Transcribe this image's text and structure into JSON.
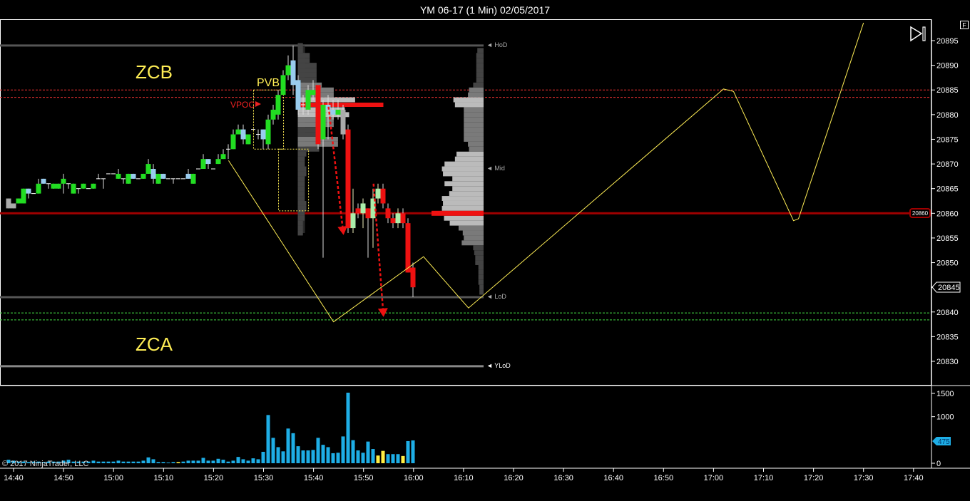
{
  "window": {
    "title": "YM 06-17 (1 Min)  02/05/2017",
    "f_button": "F",
    "copyright": "© 2017 NinjaTrader, LLC"
  },
  "colors": {
    "up": "#22dd22",
    "down": "#ee1111",
    "blue": "#99ccee",
    "gray": "#aaaaaa",
    "pale": "#aaeeaa",
    "doji": "#ffffff",
    "volume": "#1eaee6",
    "volume_alt": "#ffee44",
    "annotation": "#ffee55",
    "poc": "#ee1111",
    "level_red": "#a00000",
    "zone_red": "#ee3333",
    "zone_green": "#44dd44"
  },
  "labels": {
    "zcb": "ZCB",
    "zca": "ZCA",
    "pvb": "PVB",
    "vpoc": "VPOC",
    "hod": "◄ HoD",
    "mid": "◄ Mid",
    "lod": "◄ LoD",
    "ylod": "◄ YLoD"
  },
  "chart_data": {
    "type": "candlestick",
    "title": "YM 06-17 (1 Min)  02/05/2017",
    "first_bar_time": "14:39",
    "bar_interval": "1 Min",
    "price_axis": {
      "range": [
        20824,
        20899
      ],
      "ticks": [
        "20895",
        "20890",
        "20885",
        "20880",
        "20875",
        "20870",
        "20865",
        "20860",
        "20855",
        "20850",
        "20845",
        "20840",
        "20835",
        "20830"
      ]
    },
    "time_axis": {
      "ticks": [
        "14:40",
        "14:50",
        "15:00",
        "15:10",
        "15:20",
        "15:30",
        "15:40",
        "15:50",
        "16:00",
        "16:10",
        "16:20",
        "16:30",
        "16:40",
        "16:50",
        "17:00",
        "17:10",
        "17:20",
        "17:30",
        "17:40"
      ]
    },
    "volume_axis": {
      "range": [
        0,
        1500
      ],
      "ticks": [
        "1500",
        "1000",
        "0"
      ]
    },
    "last_price": "20845",
    "last_volume": "475",
    "level_tag": "20860",
    "candles": [
      [
        20861,
        20863,
        20861,
        20863,
        "gray"
      ],
      [
        20861,
        20862,
        20861,
        20862,
        "gray"
      ],
      [
        20862,
        20863,
        20862,
        20863,
        "up"
      ],
      [
        20862,
        20865,
        20862,
        20865,
        "up"
      ],
      [
        20865,
        20865,
        20863,
        20864,
        "blue"
      ],
      [
        20864,
        20864,
        20864,
        20864,
        "doji"
      ],
      [
        20864,
        20867,
        20864,
        20866,
        "up"
      ],
      [
        20867,
        20867,
        20866,
        20866,
        "blue"
      ],
      [
        20866,
        20866,
        20865,
        20866,
        "doji"
      ],
      [
        20865,
        20866,
        20865,
        20866,
        "up"
      ],
      [
        20865,
        20866,
        20865,
        20866,
        "up"
      ],
      [
        20866,
        20868,
        20864,
        20867,
        "up"
      ],
      [
        20866,
        20866,
        20865,
        20866,
        "doji"
      ],
      [
        20864,
        20866,
        20864,
        20866,
        "up"
      ],
      [
        20865,
        20865,
        20864,
        20865,
        "doji"
      ],
      [
        20865,
        20866,
        20865,
        20866,
        "up"
      ],
      [
        20865,
        20865,
        20865,
        20865,
        "doji"
      ],
      [
        20865,
        20866,
        20865,
        20866,
        "up"
      ],
      [
        20867,
        20868,
        20867,
        20867,
        "doji"
      ],
      [
        20867,
        20867,
        20865,
        20867,
        "doji"
      ],
      [
        20868,
        20868,
        20868,
        20868,
        "doji"
      ],
      [
        20868,
        20868,
        20868,
        20868,
        "doji"
      ],
      [
        20867,
        20869,
        20867,
        20868,
        "up"
      ],
      [
        20867,
        20867,
        20866,
        20867,
        "doji"
      ],
      [
        20866,
        20868,
        20866,
        20868,
        "up"
      ],
      [
        20868,
        20868,
        20867,
        20867,
        "blue"
      ],
      [
        20867,
        20867,
        20867,
        20867,
        "doji"
      ],
      [
        20867,
        20868,
        20867,
        20868,
        "up"
      ],
      [
        20868,
        20871,
        20868,
        20870,
        "up"
      ],
      [
        20869,
        20870,
        20866,
        20867,
        "blue"
      ],
      [
        20866,
        20868,
        20866,
        20868,
        "up"
      ],
      [
        20868,
        20868,
        20867,
        20867,
        "blue"
      ],
      [
        20867,
        20867,
        20867,
        20867,
        "doji"
      ],
      [
        20867,
        20867,
        20866,
        20867,
        "doji"
      ],
      [
        20867,
        20867,
        20867,
        20867,
        "doji"
      ],
      [
        20867,
        20867,
        20867,
        20867,
        "doji"
      ],
      [
        20868,
        20869,
        20867,
        20867,
        "blue"
      ],
      [
        20866,
        20868,
        20866,
        20868,
        "up"
      ],
      [
        20869,
        20869,
        20869,
        20869,
        "doji"
      ],
      [
        20869,
        20872,
        20869,
        20871,
        "up"
      ],
      [
        20871,
        20871,
        20869,
        20870,
        "blue"
      ],
      [
        20869,
        20869,
        20869,
        20869,
        "doji"
      ],
      [
        20870,
        20872,
        20870,
        20871,
        "up"
      ],
      [
        20871,
        20873,
        20871,
        20872,
        "up"
      ],
      [
        20873,
        20874,
        20871,
        20873,
        "doji"
      ],
      [
        20873,
        20877,
        20873,
        20876,
        "up"
      ],
      [
        20876,
        20878,
        20876,
        20877,
        "up"
      ],
      [
        20877,
        20878,
        20874,
        20875,
        "blue"
      ],
      [
        20874,
        20876,
        20874,
        20876,
        "up"
      ],
      [
        20877,
        20877,
        20877,
        20877,
        "doji"
      ],
      [
        20876,
        20877,
        20875,
        20876,
        "doji"
      ],
      [
        20877,
        20877,
        20873,
        20875,
        "blue"
      ],
      [
        20874,
        20880,
        20873,
        20879,
        "up"
      ],
      [
        20879,
        20882,
        20878,
        20881,
        "up"
      ],
      [
        20880,
        20885,
        20879,
        20884,
        "up"
      ],
      [
        20884,
        20889,
        20884,
        20888,
        "up"
      ],
      [
        20888,
        20892,
        20887,
        20890,
        "up"
      ],
      [
        20891,
        20894,
        20884,
        20886,
        "blue"
      ],
      [
        20887,
        20888,
        20880,
        20881,
        "blue"
      ],
      [
        20882,
        20884,
        20880,
        20882,
        "doji"
      ],
      [
        20881,
        20886,
        20880,
        20885,
        "up"
      ],
      [
        20884,
        20887,
        20883,
        20885,
        "up"
      ],
      [
        20886,
        20886,
        20873,
        20874,
        "down"
      ],
      [
        20875,
        20883,
        20851,
        20882,
        "up"
      ],
      [
        20882,
        20884,
        20875,
        20881,
        "blue"
      ],
      [
        20881,
        20883,
        20879,
        20880,
        "blue"
      ],
      [
        20880,
        20883,
        20879,
        20881,
        "up"
      ],
      [
        20881,
        20882,
        20875,
        20876,
        "gray"
      ],
      [
        20877,
        20878,
        20856,
        20857,
        "down"
      ],
      [
        20857,
        20865,
        20856,
        20860,
        "pale"
      ],
      [
        20861,
        20862,
        20859,
        20860,
        "down"
      ],
      [
        20860,
        20863,
        20857,
        20862,
        "pale"
      ],
      [
        20861,
        20861,
        20851,
        20859,
        "down"
      ],
      [
        20859,
        20865,
        20853,
        20863,
        "pale"
      ],
      [
        20863,
        20866,
        20862,
        20865,
        "pale"
      ],
      [
        20865,
        20866,
        20861,
        20862,
        "down"
      ],
      [
        20861,
        20862,
        20858,
        20859,
        "down"
      ],
      [
        20859,
        20860,
        20857,
        20858,
        "down"
      ],
      [
        20858,
        20861,
        20857,
        20860,
        "pale"
      ],
      [
        20860,
        20861,
        20857,
        20858,
        "down"
      ],
      [
        20858,
        20859,
        20848,
        20848,
        "down"
      ],
      [
        20849,
        20850,
        20843,
        20845,
        "down"
      ]
    ],
    "volume": [
      60,
      40,
      20,
      20,
      10,
      20,
      20,
      10,
      20,
      20,
      20,
      40,
      60,
      20,
      20,
      20,
      20,
      40,
      20,
      20,
      20,
      20,
      40,
      20,
      20,
      20,
      20,
      40,
      110,
      70,
      10,
      10,
      0,
      10,
      10,
      20,
      40,
      40,
      40,
      100,
      40,
      40,
      80,
      60,
      20,
      40,
      120,
      70,
      40,
      90,
      70,
      230,
      1020,
      530,
      330,
      240,
      730,
      630,
      350,
      260,
      260,
      270,
      530,
      380,
      330,
      200,
      210,
      560,
      1500,
      480,
      260,
      210,
      450,
      290,
      150,
      250,
      180,
      180,
      180,
      140,
      460,
      475
    ],
    "volume_alt_bars": [
      34,
      74,
      75,
      79
    ],
    "levels": {
      "hod": 20894,
      "mid": 20869,
      "lod": 20843,
      "ylod": 20829,
      "poc_level": 20860,
      "zone_red": [
        20885,
        20883.5
      ],
      "zone_green": [
        20839.8,
        20838.4
      ],
      "vpoc": 20882
    },
    "profile_session_start": "15:30",
    "profile_left": [
      [
        20894,
        6
      ],
      [
        20893,
        6
      ],
      [
        20892,
        14
      ],
      [
        20891,
        14
      ],
      [
        20890,
        22
      ],
      [
        20889,
        22
      ],
      [
        20888,
        22
      ],
      [
        20887,
        22
      ],
      [
        20886,
        28
      ],
      [
        20885,
        42
      ],
      [
        20884,
        42
      ],
      [
        20883,
        67
      ],
      [
        20882,
        100
      ],
      [
        20881,
        55
      ],
      [
        20880,
        60
      ],
      [
        20879,
        42
      ],
      [
        20878,
        42
      ],
      [
        20877,
        22
      ],
      [
        20876,
        22
      ],
      [
        20875,
        47
      ],
      [
        20874,
        47
      ],
      [
        20873,
        25
      ],
      [
        20872,
        10
      ],
      [
        20871,
        8
      ],
      [
        20870,
        8
      ],
      [
        20869,
        10
      ],
      [
        20868,
        10
      ],
      [
        20867,
        8
      ],
      [
        20866,
        8
      ],
      [
        20865,
        8
      ],
      [
        20864,
        8
      ],
      [
        20863,
        8
      ],
      [
        20862,
        10
      ],
      [
        20861,
        10
      ],
      [
        20860,
        8
      ],
      [
        20859,
        8
      ],
      [
        20858,
        6
      ],
      [
        20857,
        6
      ],
      [
        20856,
        6
      ]
    ],
    "profile_right": [
      [
        20893,
        12
      ],
      [
        20892,
        14
      ],
      [
        20891,
        14
      ],
      [
        20890,
        14
      ],
      [
        20889,
        14
      ],
      [
        20888,
        14
      ],
      [
        20887,
        14
      ],
      [
        20886,
        20
      ],
      [
        20885,
        28
      ],
      [
        20884,
        30
      ],
      [
        20883,
        58
      ],
      [
        20882,
        55
      ],
      [
        20881,
        38
      ],
      [
        20880,
        38
      ],
      [
        20879,
        38
      ],
      [
        20878,
        38
      ],
      [
        20877,
        38
      ],
      [
        20876,
        38
      ],
      [
        20875,
        38
      ],
      [
        20874,
        30
      ],
      [
        20873,
        28
      ],
      [
        20872,
        52
      ],
      [
        20871,
        55
      ],
      [
        20870,
        75
      ],
      [
        20869,
        80
      ],
      [
        20868,
        78
      ],
      [
        20867,
        60
      ],
      [
        20866,
        75
      ],
      [
        20865,
        60
      ],
      [
        20864,
        66
      ],
      [
        20863,
        80
      ],
      [
        20862,
        78
      ],
      [
        20861,
        80
      ],
      [
        20860,
        100
      ],
      [
        20859,
        76
      ],
      [
        20858,
        65
      ],
      [
        20857,
        48
      ],
      [
        20856,
        40
      ],
      [
        20855,
        38
      ],
      [
        20854,
        42
      ],
      [
        20853,
        20
      ],
      [
        20852,
        18
      ],
      [
        20851,
        16
      ],
      [
        20850,
        16
      ],
      [
        20849,
        10
      ],
      [
        20848,
        10
      ],
      [
        20847,
        10
      ],
      [
        20846,
        10
      ],
      [
        20845,
        8
      ],
      [
        20844,
        8
      ]
    ],
    "zigzag": [
      [
        "15:23",
        20870.7
      ],
      [
        "15:44",
        20838
      ],
      [
        "16:02",
        20851.2
      ],
      [
        "16:11",
        20840.8
      ],
      [
        "17:02",
        20885.2
      ],
      [
        "17:04",
        20884.7
      ],
      [
        "17:16",
        20858.5
      ],
      [
        "17:17",
        20858.9
      ],
      [
        "17:30",
        20898.6
      ]
    ],
    "arrows": [
      [
        [
          "15:43",
          20881.6
        ],
        [
          "15:46",
          20855.6
        ]
      ],
      [
        [
          "15:52",
          20866
        ],
        [
          "15:54",
          20839
        ]
      ]
    ],
    "boxes": [
      [
        [
          "15:28",
          20885
        ],
        [
          "15:34",
          20873
        ]
      ],
      [
        [
          "15:33",
          20873
        ],
        [
          "15:39",
          20860.5
        ]
      ]
    ]
  }
}
